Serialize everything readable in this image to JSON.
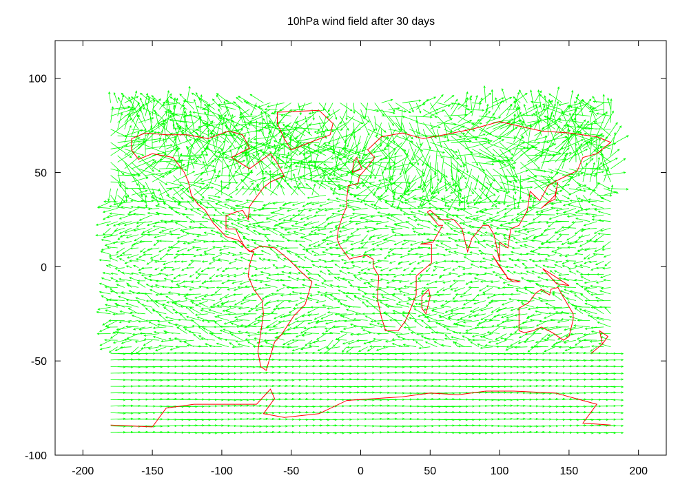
{
  "chart_data": {
    "type": "vector-field",
    "title": "10hPa wind field after 30 days",
    "xlabel": "",
    "ylabel": "",
    "xlim": [
      -220,
      220
    ],
    "ylim": [
      -100,
      120
    ],
    "xticks": [
      -200,
      -150,
      -100,
      -50,
      0,
      50,
      100,
      150,
      200
    ],
    "yticks": [
      -100,
      -50,
      0,
      50,
      100
    ],
    "xtick_labels": [
      "-200",
      "-150",
      "-100",
      "-50",
      "0",
      "50",
      "100",
      "150",
      "200"
    ],
    "ytick_labels": [
      "-100",
      "-50",
      "0",
      "50",
      "100"
    ],
    "grid": false,
    "legend": "none",
    "series": [
      {
        "kind": "wind-vectors",
        "color": "#00ff00",
        "lon_range": [
          -180,
          180
        ],
        "lat_range": [
          -88,
          88
        ],
        "grid_step": [
          5,
          3.5
        ]
      },
      {
        "kind": "coastlines",
        "color": "#ff0000"
      }
    ]
  }
}
